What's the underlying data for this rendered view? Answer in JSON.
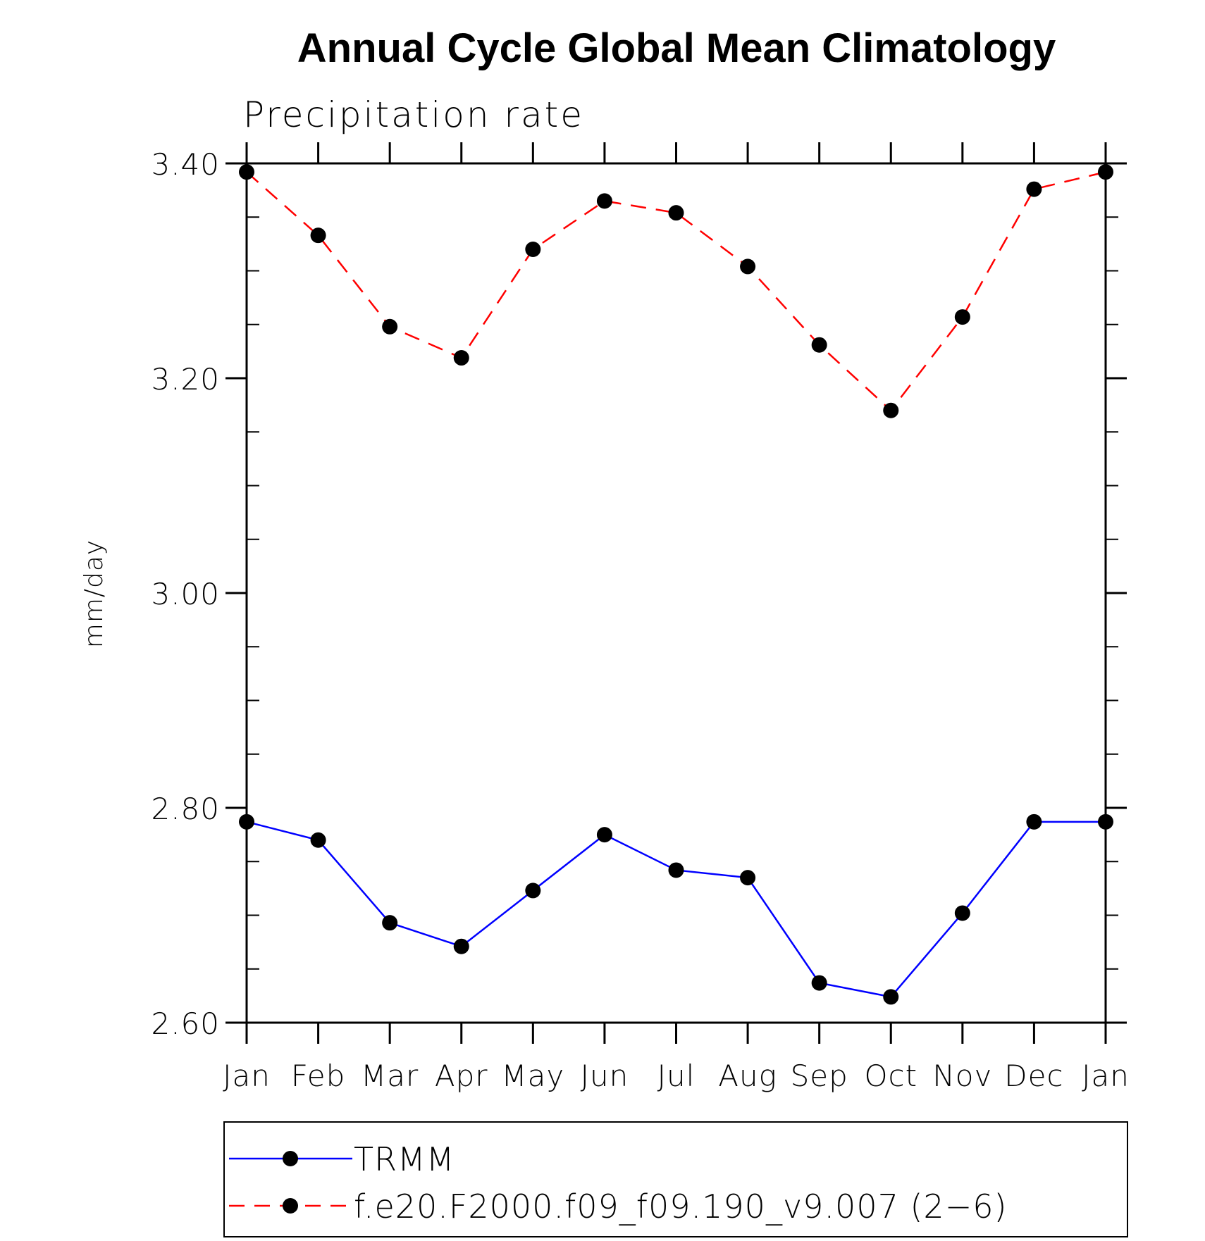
{
  "chart_data": {
    "type": "line",
    "title": "Annual Cycle Global Mean Climatology",
    "subtitle": "Precipitation rate",
    "xlabel": "",
    "ylabel": "mm/day",
    "categories": [
      "Jan",
      "Feb",
      "Mar",
      "Apr",
      "May",
      "Jun",
      "Jul",
      "Aug",
      "Sep",
      "Oct",
      "Nov",
      "Dec",
      "Jan"
    ],
    "ylim": [
      2.6,
      3.4
    ],
    "yticks_major": [
      "2.60",
      "2.80",
      "3.00",
      "3.20",
      "3.40"
    ],
    "y_minor_step": 0.05,
    "grid": false,
    "legend_position": "bottom",
    "series": [
      {
        "name": "TRMM",
        "color": "#0000ff",
        "line_style": "solid",
        "marker": "filled-circle",
        "values": [
          2.787,
          2.77,
          2.693,
          2.671,
          2.723,
          2.775,
          2.742,
          2.735,
          2.637,
          2.624,
          2.702,
          2.787,
          2.787
        ]
      },
      {
        "name": "f.e20.F2000.f09_f09.190_v9.007 (2−6)",
        "color": "#ff0000",
        "line_style": "dashed",
        "marker": "filled-circle",
        "values": [
          3.392,
          3.333,
          3.248,
          3.219,
          3.32,
          3.365,
          3.354,
          3.304,
          3.231,
          3.17,
          3.257,
          3.376,
          3.392
        ]
      }
    ]
  }
}
